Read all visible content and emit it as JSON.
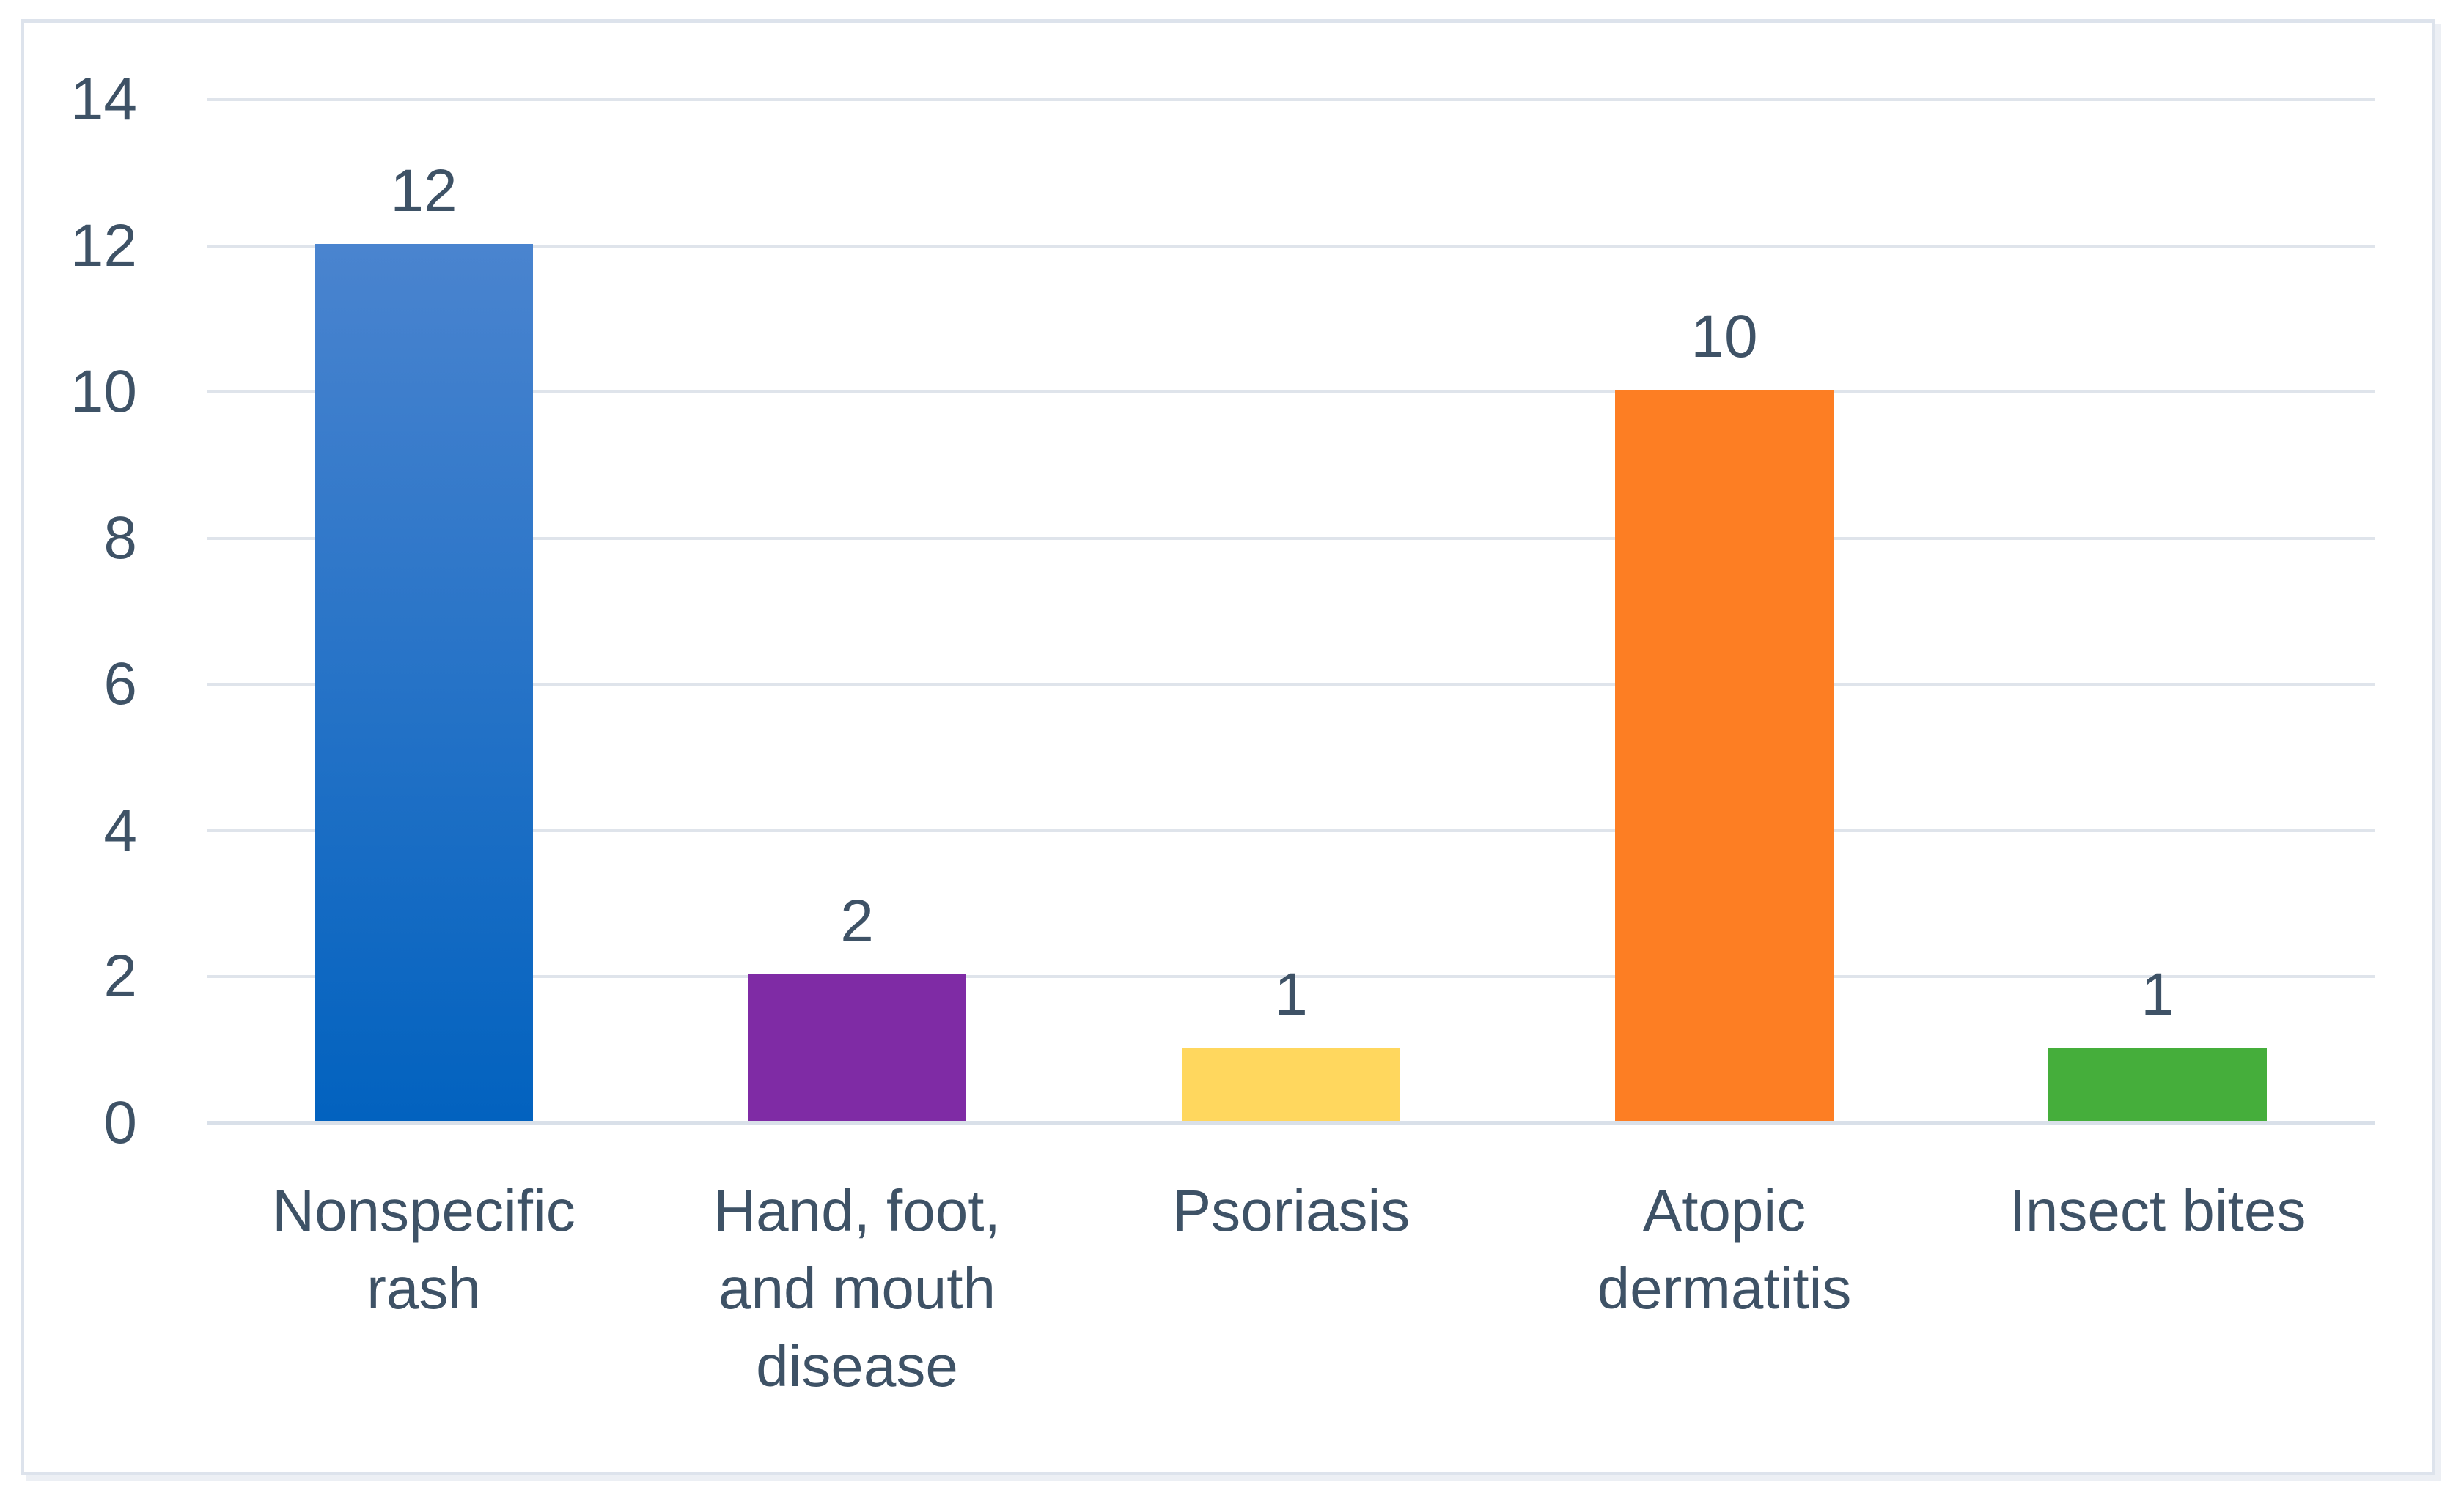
{
  "chart_data": {
    "type": "bar",
    "title": "",
    "xlabel": "",
    "ylabel": "",
    "categories": [
      "Nonspecific rash",
      "Hand, foot, and mouth disease",
      "Psoriasis",
      "Atopic dermatitis",
      "Insect bites"
    ],
    "category_label_lines": [
      [
        "Nonspecific",
        "rash"
      ],
      [
        "Hand, foot,",
        "and mouth",
        "disease"
      ],
      [
        "Psoriasis"
      ],
      [
        "Atopic",
        "dermatitis"
      ],
      [
        "Insect bites"
      ]
    ],
    "values": [
      12,
      2,
      1,
      10,
      1
    ],
    "data_labels": [
      "12",
      "2",
      "1",
      "10",
      "1"
    ],
    "ylim": [
      0,
      14
    ],
    "yticks": [
      0,
      2,
      4,
      6,
      8,
      10,
      12,
      14
    ],
    "grid": "horizontal",
    "legend": "none",
    "bar_fills": [
      {
        "type": "gradient",
        "top": "#4a84cf",
        "bottom": "#0262bf"
      },
      {
        "type": "solid",
        "color": "#7f2ba5"
      },
      {
        "type": "solid",
        "color": "#ffd75e"
      },
      {
        "type": "solid",
        "color": "#fd7e23"
      },
      {
        "type": "solid",
        "color": "#45ae3b"
      }
    ]
  },
  "colors": {
    "text": "#3e5266",
    "gridline": "#dfe4eb",
    "axis_line": "#d9e0e9",
    "frame_border": "#dde3ec",
    "background": "#ffffff"
  }
}
